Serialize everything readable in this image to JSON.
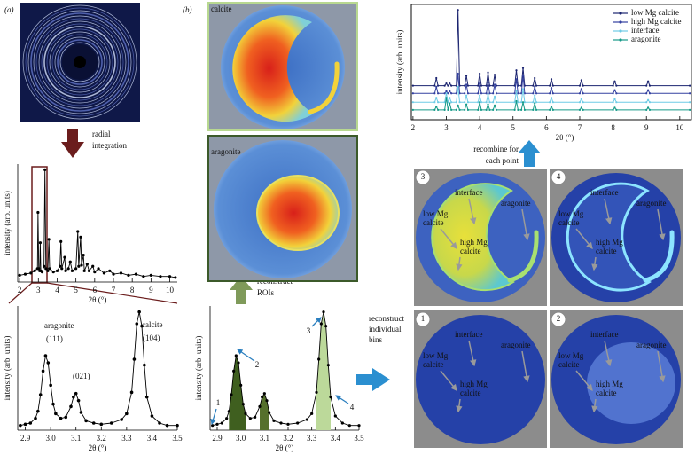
{
  "panel_labels": [
    "(a)",
    "(b)"
  ],
  "steps": {
    "radial": [
      "radial",
      "integration"
    ],
    "rois": [
      "reconstruct",
      "ROIs"
    ],
    "bins": [
      "reconstruct",
      "individual",
      "bins"
    ],
    "recombine": [
      "recombine for",
      "each point"
    ]
  },
  "roi_maps": [
    "calcite",
    "aragonite"
  ],
  "bin_maps": [
    {
      "number": "3",
      "interface": "interface",
      "low_mg": [
        "low Mg",
        "calcite"
      ],
      "high_mg": [
        "high Mg",
        "calcite"
      ],
      "aragonite": "aragonite"
    },
    {
      "number": "4",
      "interface": "interface",
      "low_mg": [
        "low Mg",
        "calcite"
      ],
      "high_mg": [
        "high Mg",
        "calcite"
      ],
      "aragonite": "aragonite"
    },
    {
      "number": "1",
      "interface": "interface",
      "low_mg": [
        "low Mg",
        "calcite"
      ],
      "high_mg": [
        "high Mg",
        "calcite"
      ],
      "aragonite": "aragonite"
    },
    {
      "number": "2",
      "interface": "interface",
      "low_mg": [
        "low Mg",
        "calcite"
      ],
      "high_mg": [
        "high Mg",
        "calcite"
      ],
      "aragonite": "aragonite"
    }
  ],
  "chart_data": [
    {
      "type": "line",
      "x": [
        2.0,
        2.3,
        2.6,
        2.8,
        2.95,
        2.98,
        3.02,
        3.07,
        3.1,
        3.13,
        3.2,
        3.3,
        3.35,
        3.4,
        3.5,
        3.56,
        3.6,
        3.8,
        4.0,
        4.15,
        4.2,
        4.25,
        4.4,
        4.45,
        4.6,
        4.7,
        4.8,
        5.0,
        5.1,
        5.15,
        5.25,
        5.3,
        5.4,
        5.45,
        5.6,
        5.7,
        5.9,
        6.0,
        6.2,
        6.5,
        6.8,
        7.0,
        7.4,
        7.8,
        8.2,
        8.6,
        9.0,
        9.5,
        10.0,
        10.3
      ],
      "values": [
        6,
        7,
        8,
        10,
        12,
        62,
        12,
        10,
        35,
        10,
        9,
        14,
        100,
        12,
        10,
        38,
        12,
        9,
        10,
        14,
        36,
        12,
        22,
        10,
        12,
        18,
        10,
        12,
        45,
        14,
        40,
        15,
        24,
        10,
        16,
        10,
        14,
        9,
        12,
        8,
        10,
        7,
        8,
        6,
        7,
        5,
        6,
        5,
        5,
        4
      ],
      "color": "#000000",
      "markers": true,
      "xlim": [
        1.9,
        10.4
      ],
      "ylim": [
        0,
        105
      ],
      "xticks": [
        2,
        3,
        4,
        5,
        6,
        7,
        8,
        9,
        10
      ],
      "xlabel": "2θ (°)",
      "ylabel": "intensity (arb. units)"
    },
    {
      "type": "line",
      "x": [
        2.88,
        2.9,
        2.92,
        2.94,
        2.95,
        2.96,
        2.97,
        2.98,
        2.99,
        3.0,
        3.01,
        3.02,
        3.04,
        3.06,
        3.08,
        3.09,
        3.1,
        3.11,
        3.12,
        3.14,
        3.17,
        3.2,
        3.24,
        3.28,
        3.3,
        3.32,
        3.33,
        3.34,
        3.35,
        3.36,
        3.37,
        3.38,
        3.4,
        3.43,
        3.46,
        3.5
      ],
      "values": [
        4,
        5,
        6,
        10,
        16,
        30,
        50,
        63,
        57,
        38,
        22,
        14,
        10,
        11,
        20,
        28,
        31,
        25,
        15,
        8,
        6,
        5,
        6,
        9,
        14,
        32,
        60,
        90,
        100,
        88,
        55,
        28,
        12,
        6,
        4,
        4
      ],
      "color": "#000000",
      "markers": true,
      "xlim": [
        2.87,
        3.5
      ],
      "ylim": [
        0,
        105
      ],
      "xticks": [
        2.9,
        {
          "value": 3,
          "label": "3.0"
        },
        3.1,
        3.2,
        3.3,
        3.4,
        3.5
      ],
      "xlabel": "2θ (°)",
      "ylabel": "intensity (arb. units)",
      "annotations": [
        "aragonite",
        "(111)",
        "(021)",
        "calcite",
        "(104)"
      ]
    },
    {
      "type": "line",
      "x": [
        2.88,
        2.9,
        2.92,
        2.94,
        2.95,
        2.96,
        2.97,
        2.98,
        2.99,
        3.0,
        3.01,
        3.02,
        3.04,
        3.06,
        3.08,
        3.09,
        3.1,
        3.11,
        3.12,
        3.14,
        3.17,
        3.2,
        3.24,
        3.28,
        3.3,
        3.32,
        3.33,
        3.34,
        3.35,
        3.36,
        3.37,
        3.38,
        3.4,
        3.43,
        3.46,
        3.5
      ],
      "values": [
        4,
        5,
        6,
        10,
        16,
        30,
        50,
        63,
        57,
        38,
        22,
        14,
        10,
        11,
        20,
        28,
        31,
        25,
        15,
        8,
        6,
        5,
        6,
        9,
        14,
        32,
        60,
        90,
        100,
        88,
        55,
        28,
        12,
        6,
        4,
        4
      ],
      "color": "#000000",
      "markers": true,
      "xlim": [
        2.87,
        3.5
      ],
      "ylim": [
        0,
        105
      ],
      "xticks": [
        2.9,
        {
          "value": 3,
          "label": "3.0"
        },
        3.1,
        3.2,
        3.3,
        3.4,
        3.5
      ],
      "xlabel": "2θ (°)",
      "ylabel": "intensity (arb. units)",
      "bins": [
        {
          "range": [
            2.95,
            3.02
          ],
          "color": "#3f5f1f"
        },
        {
          "range": [
            3.08,
            3.12
          ],
          "color": "#55702c"
        },
        {
          "range": [
            3.32,
            3.38
          ],
          "color": "#bcd99a"
        }
      ],
      "annotations": [
        "1",
        "2",
        "3",
        "4"
      ]
    },
    {
      "type": "line",
      "x": [
        2.0,
        2.65,
        2.7,
        2.75,
        2.95,
        3.0,
        3.05,
        3.1,
        3.15,
        3.3,
        3.35,
        3.4,
        3.55,
        3.6,
        3.65,
        3.95,
        4.0,
        4.05,
        4.2,
        4.25,
        4.3,
        4.4,
        4.45,
        4.5,
        5.05,
        5.1,
        5.15,
        5.25,
        5.3,
        5.35,
        5.6,
        5.65,
        5.7,
        6.1,
        6.15,
        6.2,
        7.0,
        7.05,
        7.1,
        8.0,
        8.05,
        8.1,
        9.0,
        9.05,
        9.1,
        10.3
      ],
      "series": [
        {
          "name": "low Mg calcite",
          "color": "#1b2470",
          "values": [
            31,
            31,
            38,
            31,
            31,
            33,
            31,
            33,
            31,
            31,
            100,
            31,
            31,
            40,
            31,
            31,
            42,
            31,
            31,
            43,
            31,
            31,
            41,
            31,
            31,
            45,
            31,
            31,
            47,
            31,
            31,
            38,
            31,
            31,
            37,
            31,
            31,
            36,
            31,
            31,
            35,
            31,
            31,
            35,
            31,
            31
          ]
        },
        {
          "name": "high Mg calcite",
          "color": "#3340a0",
          "values": [
            24,
            24,
            30,
            24,
            24,
            26,
            24,
            26,
            24,
            24,
            42,
            24,
            24,
            32,
            24,
            24,
            33,
            24,
            24,
            34,
            24,
            24,
            32,
            24,
            24,
            37,
            24,
            24,
            40,
            24,
            24,
            30,
            24,
            24,
            29,
            24,
            24,
            28,
            24,
            24,
            27,
            24,
            24,
            27,
            24,
            24
          ]
        },
        {
          "name": "interface",
          "color": "#6fcbe6",
          "values": [
            16,
            16,
            20,
            16,
            16,
            24,
            16,
            20,
            16,
            16,
            30,
            16,
            16,
            22,
            16,
            16,
            22,
            16,
            16,
            23,
            16,
            16,
            21,
            16,
            16,
            26,
            16,
            16,
            28,
            16,
            16,
            22,
            16,
            16,
            20,
            16,
            16,
            19,
            16,
            16,
            19,
            16,
            16,
            18,
            16,
            16
          ]
        },
        {
          "name": "aragonite",
          "color": "#169a88",
          "values": [
            9,
            9,
            12,
            9,
            9,
            20,
            9,
            15,
            9,
            9,
            13,
            9,
            9,
            14,
            9,
            9,
            16,
            9,
            9,
            14,
            9,
            9,
            13,
            9,
            9,
            17,
            9,
            9,
            16,
            9,
            9,
            15,
            9,
            9,
            12,
            9,
            9,
            11,
            9,
            9,
            11,
            9,
            9,
            11,
            9,
            9
          ]
        }
      ],
      "markers": true,
      "legend": "upper right",
      "xlim": [
        1.95,
        10.35
      ],
      "ylim": [
        0,
        105
      ],
      "xticks": [
        2,
        3,
        4,
        5,
        6,
        7,
        8,
        9,
        10
      ],
      "xlabel": "2θ (°)",
      "ylabel": "intensity (arb. units)"
    }
  ]
}
